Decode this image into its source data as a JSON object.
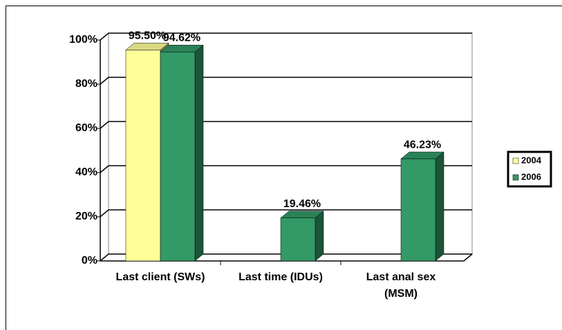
{
  "chart_data": {
    "type": "bar3d",
    "categories": [
      "Last client (SWs)",
      "Last time (IDUs)",
      "Last anal sex (MSM)"
    ],
    "series": [
      {
        "name": "2004",
        "color": "#ffff99",
        "values": [
          95.5,
          null,
          null
        ],
        "value_labels": [
          "95.50%",
          null,
          null
        ]
      },
      {
        "name": "2006",
        "color": "#339966",
        "values": [
          94.62,
          19.46,
          46.23
        ],
        "value_labels": [
          "94.62%",
          "19.46%",
          "46.23%"
        ]
      }
    ],
    "ylim": [
      0,
      100
    ],
    "yticks": [
      {
        "value": 0,
        "label": "0%"
      },
      {
        "value": 20,
        "label": "20%"
      },
      {
        "value": 40,
        "label": "40%"
      },
      {
        "value": 60,
        "label": "60%"
      },
      {
        "value": 80,
        "label": "80%"
      },
      {
        "value": 100,
        "label": "100%"
      }
    ],
    "grid": true,
    "legend": "right"
  }
}
